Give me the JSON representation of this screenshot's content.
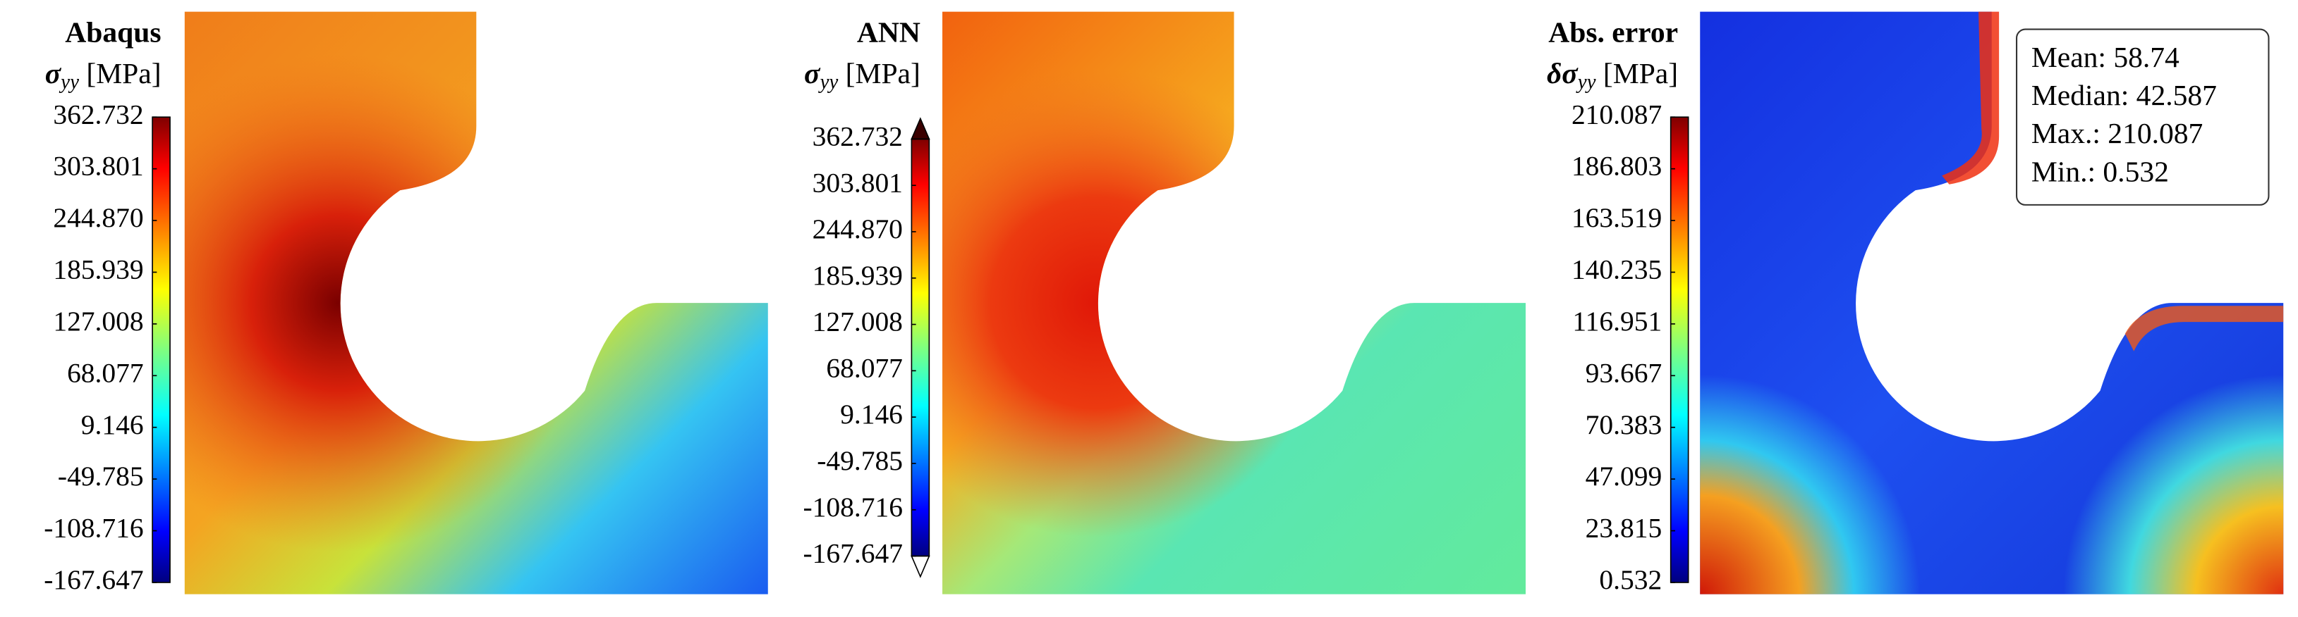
{
  "panels": [
    {
      "title": "Abaqus",
      "symbol": "σ",
      "subscript": "yy",
      "unit": "[MPa]",
      "extend": false,
      "clim": [
        -167.647,
        362.732
      ],
      "ticks": [
        {
          "value": 362.732,
          "label": "362.732"
        },
        {
          "value": 303.801,
          "label": "303.801"
        },
        {
          "value": 244.87,
          "label": "244.870"
        },
        {
          "value": 185.939,
          "label": "185.939"
        },
        {
          "value": 127.008,
          "label": "127.008"
        },
        {
          "value": 68.077,
          "label": "68.077"
        },
        {
          "value": 9.146,
          "label": "9.146"
        },
        {
          "value": -49.785,
          "label": "-49.785"
        },
        {
          "value": -108.716,
          "label": "-108.716"
        },
        {
          "value": -167.647,
          "label": "-167.647"
        }
      ]
    },
    {
      "title": "ANN",
      "symbol": "σ",
      "subscript": "yy",
      "unit": "[MPa]",
      "extend": true,
      "clim": [
        -167.647,
        362.732
      ],
      "ticks": [
        {
          "value": 362.732,
          "label": "362.732"
        },
        {
          "value": 303.801,
          "label": "303.801"
        },
        {
          "value": 244.87,
          "label": "244.870"
        },
        {
          "value": 185.939,
          "label": "185.939"
        },
        {
          "value": 127.008,
          "label": "127.008"
        },
        {
          "value": 68.077,
          "label": "68.077"
        },
        {
          "value": 9.146,
          "label": "9.146"
        },
        {
          "value": -49.785,
          "label": "-49.785"
        },
        {
          "value": -108.716,
          "label": "-108.716"
        },
        {
          "value": -167.647,
          "label": "-167.647"
        }
      ]
    },
    {
      "title": "Abs. error",
      "symbol": "δσ",
      "subscript": "yy",
      "unit": "[MPa]",
      "extend": false,
      "clim": [
        0.532,
        210.087
      ],
      "ticks": [
        {
          "value": 210.087,
          "label": "210.087"
        },
        {
          "value": 186.803,
          "label": "186.803"
        },
        {
          "value": 163.519,
          "label": "163.519"
        },
        {
          "value": 140.235,
          "label": "140.235"
        },
        {
          "value": 116.951,
          "label": "116.951"
        },
        {
          "value": 93.667,
          "label": "93.667"
        },
        {
          "value": 70.383,
          "label": "70.383"
        },
        {
          "value": 47.099,
          "label": "47.099"
        },
        {
          "value": 23.815,
          "label": "23.815"
        },
        {
          "value": 0.532,
          "label": "0.532"
        }
      ]
    }
  ],
  "stats": [
    {
      "label": "Mean:",
      "value": 58.74
    },
    {
      "label": "Median:",
      "value": 42.587
    },
    {
      "label": "Max.:",
      "value": 210.087
    },
    {
      "label": "Min.:",
      "value": 0.532
    }
  ]
}
